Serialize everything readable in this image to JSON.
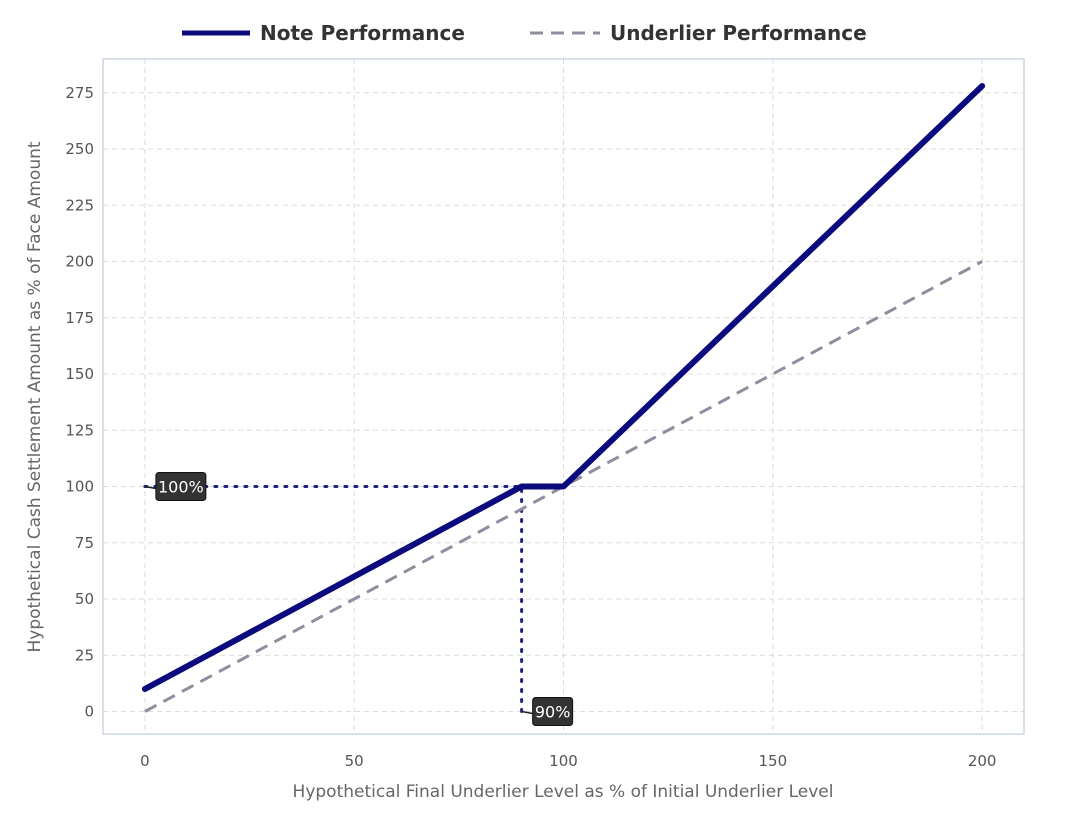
{
  "chart_data": {
    "type": "line",
    "xlabel": "Hypothetical Final Underlier Level as % of Initial Underlier Level",
    "ylabel": "Hypothetical Cash Settlement Amount as % of Face Amount",
    "xlim": [
      -10,
      210
    ],
    "ylim": [
      -10,
      290
    ],
    "x_ticks": [
      0,
      50,
      100,
      150,
      200
    ],
    "y_ticks": [
      0,
      25,
      50,
      75,
      100,
      125,
      150,
      175,
      200,
      225,
      250,
      275
    ],
    "grid": true,
    "legend_position": "top",
    "series": [
      {
        "name": "Note Performance",
        "color": "#0b0b7d",
        "style": "solid",
        "x": [
          0,
          90,
          100,
          200
        ],
        "y": [
          10,
          100,
          100,
          278
        ]
      },
      {
        "name": "Underlier Performance",
        "color": "#8e8e9e",
        "style": "dashed",
        "x": [
          0,
          200
        ],
        "y": [
          0,
          200
        ]
      }
    ],
    "reference_lines": [
      {
        "x": [
          0,
          90
        ],
        "y": [
          100,
          100
        ],
        "color": "#1a237e",
        "style": "dotted"
      },
      {
        "x": [
          90,
          90
        ],
        "y": [
          0,
          100
        ],
        "color": "#1a237e",
        "style": "dotted"
      }
    ],
    "annotations": [
      {
        "label": "100%",
        "x": 0,
        "y": 100
      },
      {
        "label": "90%",
        "x": 90,
        "y": 0
      }
    ]
  }
}
